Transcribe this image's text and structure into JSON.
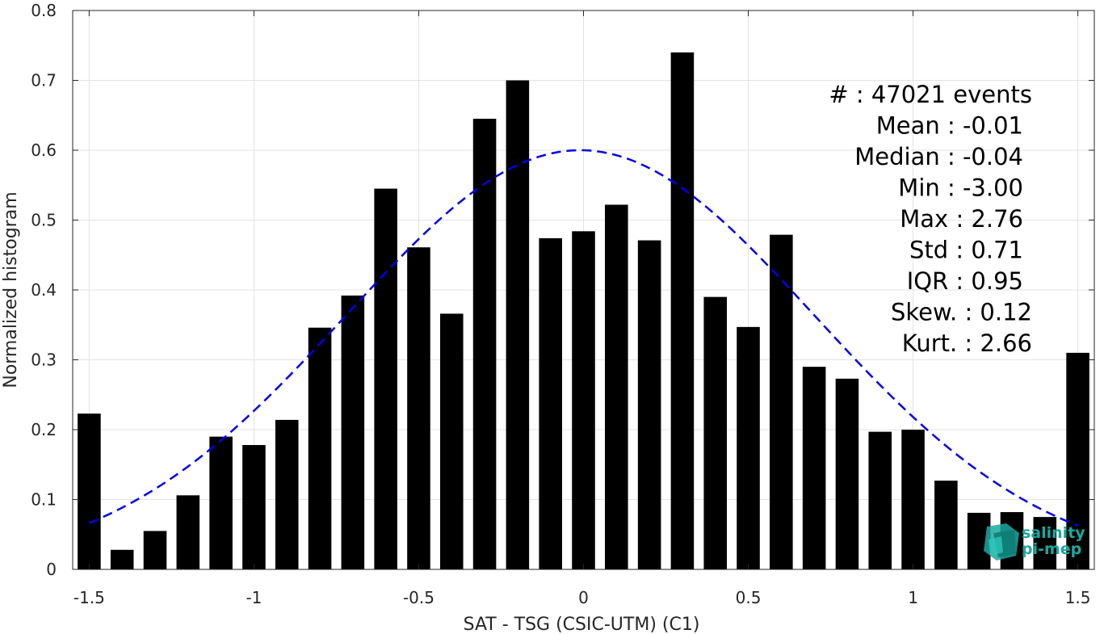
{
  "chart_data": {
    "type": "bar",
    "xlabel": "SAT - TSG (CSIC-UTM) (C1)",
    "ylabel": "Normalized histogram",
    "xlim": [
      -1.55,
      1.55
    ],
    "ylim": [
      0,
      0.8
    ],
    "xticks": [
      -1.5,
      -1,
      -0.5,
      0,
      0.5,
      1,
      1.5
    ],
    "xtick_labels": [
      "-1.5",
      "-1",
      "-0.5",
      "0",
      "0.5",
      "1",
      "1.5"
    ],
    "yticks": [
      0,
      0.1,
      0.2,
      0.3,
      0.4,
      0.5,
      0.6,
      0.7,
      0.8
    ],
    "ytick_labels": [
      "0",
      "0.1",
      "0.2",
      "0.3",
      "0.4",
      "0.5",
      "0.6",
      "0.7",
      "0.8"
    ],
    "grid": true,
    "bar_color": "#000000",
    "bar_width": 0.07,
    "x": [
      -1.5,
      -1.4,
      -1.3,
      -1.2,
      -1.1,
      -1.0,
      -0.9,
      -0.8,
      -0.7,
      -0.6,
      -0.5,
      -0.4,
      -0.3,
      -0.2,
      -0.1,
      0.0,
      0.1,
      0.2,
      0.3,
      0.4,
      0.5,
      0.6,
      0.7,
      0.8,
      0.9,
      1.0,
      1.1,
      1.2,
      1.3,
      1.4,
      1.5
    ],
    "values": [
      0.223,
      0.028,
      0.055,
      0.106,
      0.19,
      0.178,
      0.214,
      0.346,
      0.392,
      0.545,
      0.461,
      0.366,
      0.645,
      0.7,
      0.474,
      0.484,
      0.522,
      0.471,
      0.74,
      0.39,
      0.347,
      0.479,
      0.29,
      0.273,
      0.197,
      0.2,
      0.127,
      0.081,
      0.082,
      0.075,
      0.31
    ],
    "fit_curve": {
      "type": "normal",
      "mean": -0.01,
      "std": 0.71,
      "peak": 0.6,
      "x_range": [
        -1.5,
        1.5
      ],
      "color": "#0000ee",
      "style": "dashed"
    },
    "stats": [
      {
        "label": "#  : 47021 events"
      },
      {
        "label": "Mean : -0.01"
      },
      {
        "label": "Median : -0.04"
      },
      {
        "label": "Min : -3.00"
      },
      {
        "label": "Max : 2.76"
      },
      {
        "label": "Std : 0.71"
      },
      {
        "label": "IQR : 0.95"
      },
      {
        "label": "Skew. : 0.12"
      },
      {
        "label": "Kurt. : 2.66"
      }
    ],
    "stats_placement": "top-right"
  },
  "logo": {
    "line1": "salinity",
    "line2": "pi-mep",
    "icon": "cube-logo-icon",
    "color": "#1aa9a0"
  }
}
